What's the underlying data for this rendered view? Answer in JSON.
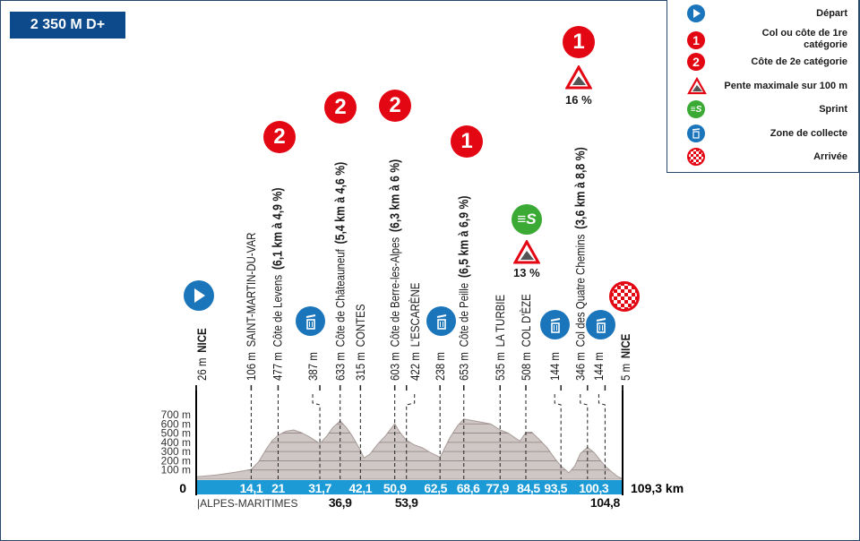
{
  "header": {
    "elevation_gain": "2 350 M D+"
  },
  "legend": {
    "items": [
      {
        "icon": "start-icon",
        "label": "Départ"
      },
      {
        "icon": "climb-cat1-icon",
        "label": "Col ou côte de 1re catégorie"
      },
      {
        "icon": "climb-cat2-icon",
        "label": "Côte de 2e catégorie"
      },
      {
        "icon": "max-slope-icon",
        "label": "Pente maximale sur 100 m"
      },
      {
        "icon": "sprint-icon",
        "label": "Sprint"
      },
      {
        "icon": "collection-zone-icon",
        "label": "Zone de collecte"
      },
      {
        "icon": "finish-icon",
        "label": "Arrivée"
      }
    ],
    "cat1_number": "1",
    "cat2_number": "2"
  },
  "markers": {
    "levens_cat": "2",
    "chateauneuf_cat": "2",
    "berre_cat": "2",
    "peille_cat": "1",
    "quatre_chemins_cat": "1",
    "eze_slope": "13 %",
    "quatre_chemins_slope": "16 %"
  },
  "colors": {
    "climb": "#e30613",
    "start": "#1b75bb",
    "sprint": "#3aaa35",
    "band": "#1b9ad6",
    "profile": "#cfc7c5"
  },
  "chart_data": {
    "type": "area",
    "xlabel": "",
    "ylabel": "",
    "xlim": [
      0,
      109.3
    ],
    "ylim": [
      0,
      700
    ],
    "y_ticks": [
      "100 m",
      "200 m",
      "300 m",
      "400 m",
      "500 m",
      "600 m",
      "700 m"
    ],
    "y_zero_label": "0",
    "x_end_label": "109,3 km",
    "region_label": "|ALPES-MARITIMES",
    "grid": true,
    "profile": [
      [
        0,
        26
      ],
      [
        5,
        45
      ],
      [
        10,
        75
      ],
      [
        14.1,
        106
      ],
      [
        16,
        190
      ],
      [
        18,
        330
      ],
      [
        19.5,
        420
      ],
      [
        21,
        477
      ],
      [
        23,
        520
      ],
      [
        25,
        535
      ],
      [
        27,
        505
      ],
      [
        29,
        460
      ],
      [
        31.7,
        387
      ],
      [
        33.5,
        470
      ],
      [
        35,
        560
      ],
      [
        36.9,
        633
      ],
      [
        38.5,
        560
      ],
      [
        40,
        470
      ],
      [
        42.1,
        315
      ],
      [
        43,
        230
      ],
      [
        44.5,
        270
      ],
      [
        46.5,
        380
      ],
      [
        48.5,
        470
      ],
      [
        50.9,
        603
      ],
      [
        52,
        520
      ],
      [
        53.9,
        422
      ],
      [
        56,
        370
      ],
      [
        58,
        340
      ],
      [
        60,
        290
      ],
      [
        62.5,
        238
      ],
      [
        63.5,
        320
      ],
      [
        65,
        450
      ],
      [
        67,
        580
      ],
      [
        68.6,
        653
      ],
      [
        70.5,
        640
      ],
      [
        73,
        620
      ],
      [
        75.5,
        600
      ],
      [
        77.9,
        535
      ],
      [
        80,
        500
      ],
      [
        82,
        440
      ],
      [
        83,
        415
      ],
      [
        84.5,
        508
      ],
      [
        86,
        510
      ],
      [
        88,
        430
      ],
      [
        90,
        340
      ],
      [
        92,
        220
      ],
      [
        93.5,
        144
      ],
      [
        95.5,
        70
      ],
      [
        97,
        140
      ],
      [
        98.5,
        280
      ],
      [
        100.3,
        346
      ],
      [
        102,
        290
      ],
      [
        103.5,
        210
      ],
      [
        104.8,
        144
      ],
      [
        106.5,
        80
      ],
      [
        108,
        30
      ],
      [
        109.3,
        5
      ]
    ],
    "waypoints": [
      {
        "km": 0,
        "km_label": "",
        "altitude": "26 m",
        "name": "NICE",
        "bold": true,
        "detail": ""
      },
      {
        "km": 14.1,
        "km_label": "14,1",
        "altitude": "106 m",
        "name": "SAINT-MARTIN-DU-VAR",
        "detail": ""
      },
      {
        "km": 21,
        "km_label": "21",
        "altitude": "477 m",
        "name": "Côte de Levens",
        "detail": "(6,1 km à 4,9 %)"
      },
      {
        "km": 31.7,
        "km_label": "31,7",
        "altitude": "387 m",
        "name": "",
        "detail": ""
      },
      {
        "km": 36.9,
        "km_label": "36,9",
        "below": true,
        "altitude": "633 m",
        "name": "Côte de Châteauneuf",
        "detail": "(5,4 km à 4,6 %)"
      },
      {
        "km": 42.1,
        "km_label": "42,1",
        "altitude": "315 m",
        "name": "CONTES",
        "detail": ""
      },
      {
        "km": 50.9,
        "km_label": "50,9",
        "altitude": "603 m",
        "name": "Côte de Berre-les-Alpes",
        "detail": "(6,3 km à 6 %)"
      },
      {
        "km": 53.9,
        "km_label": "53,9",
        "below": true,
        "altitude": "422 m",
        "name": "L'ESCARÈNE",
        "detail": ""
      },
      {
        "km": 62.5,
        "km_label": "62,5",
        "altitude": "238 m",
        "name": "",
        "detail": ""
      },
      {
        "km": 68.6,
        "km_label": "68,6",
        "altitude": "653 m",
        "name": "Côte de Peille",
        "detail": "(6,5 km à 6,9 %)"
      },
      {
        "km": 77.9,
        "km_label": "77,9",
        "altitude": "535 m",
        "name": "LA TURBIE",
        "detail": ""
      },
      {
        "km": 84.5,
        "km_label": "84,5",
        "altitude": "508 m",
        "name": "COL D'ÈZE",
        "detail": ""
      },
      {
        "km": 93.5,
        "km_label": "93,5",
        "altitude": "144 m",
        "name": "",
        "detail": ""
      },
      {
        "km": 100.3,
        "km_label": "100,3",
        "altitude": "346 m",
        "name": "Col des Quatre Chemins",
        "detail": "(3,6 km à 8,8 %)"
      },
      {
        "km": 104.8,
        "km_label": "104,8",
        "below": true,
        "altitude": "144 m",
        "name": "",
        "detail": ""
      },
      {
        "km": 109.3,
        "km_label": "",
        "altitude": "5 m",
        "name": "NICE",
        "bold": true,
        "detail": ""
      }
    ]
  }
}
